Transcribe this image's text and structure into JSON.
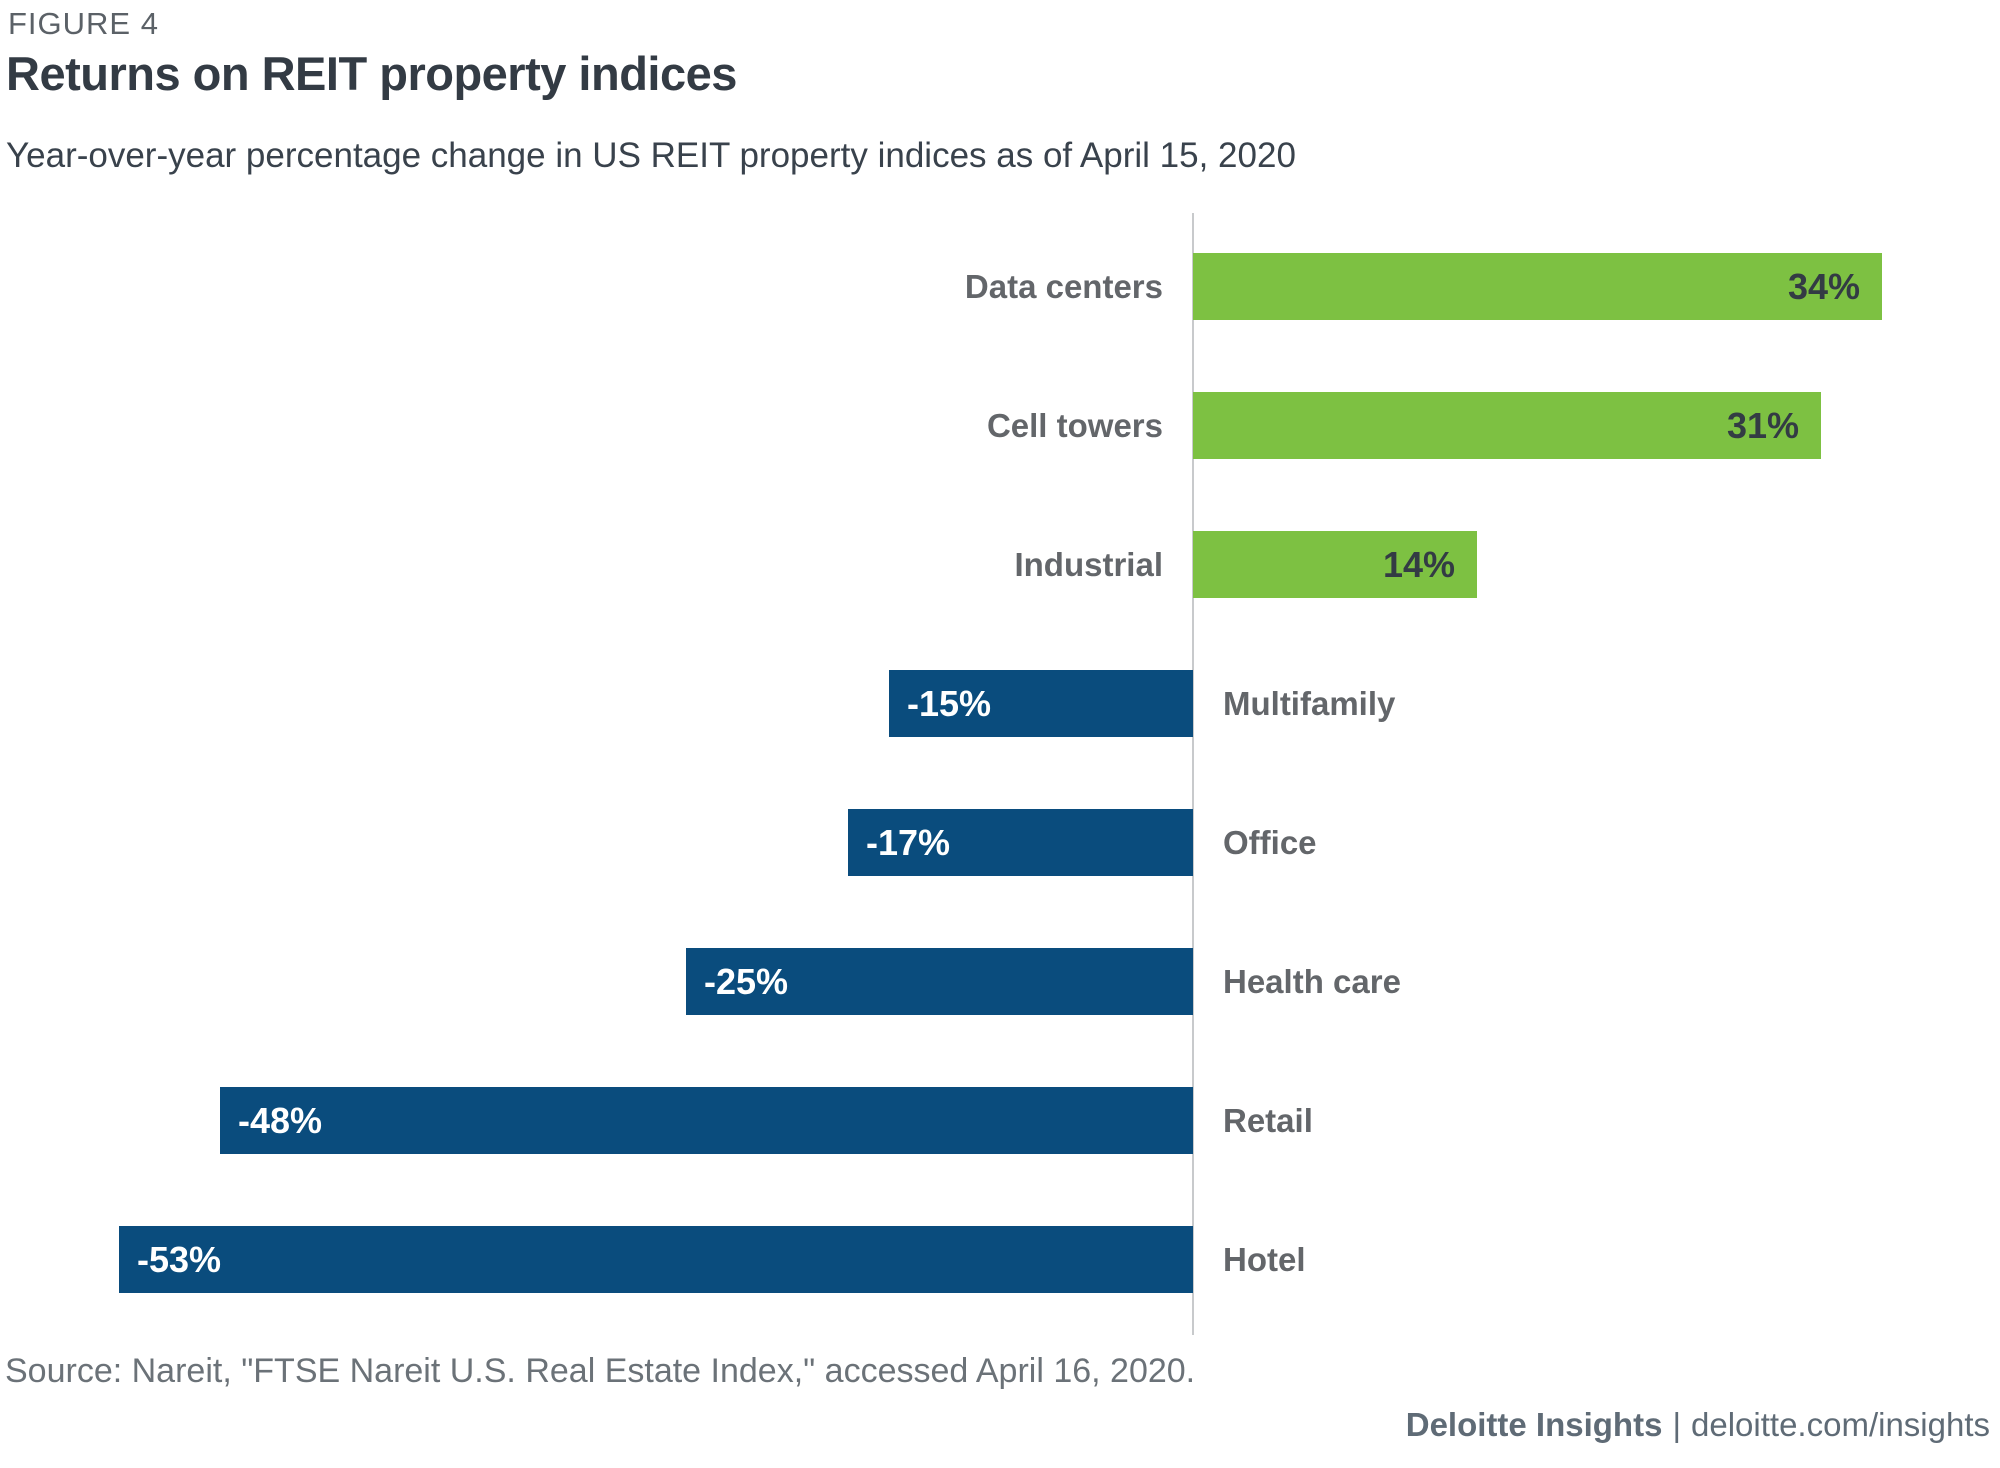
{
  "header": {
    "figure_label": "FIGURE 4",
    "title": "Returns on REIT property indices",
    "subtitle": "Year-over-year percentage change in US REIT property indices as of April 15, 2020"
  },
  "chart_data": {
    "type": "bar",
    "orientation": "horizontal",
    "title": "Returns on REIT property indices",
    "subtitle": "Year-over-year percentage change in US REIT property indices as of April 15, 2020",
    "unit": "percent year-over-year change",
    "categories": [
      "Data centers",
      "Cell towers",
      "Industrial",
      "Multifamily",
      "Office",
      "Health care",
      "Retail",
      "Hotel"
    ],
    "values": [
      34,
      31,
      14,
      -15,
      -17,
      -25,
      -48,
      -53
    ],
    "value_labels": [
      "34%",
      "31%",
      "14%",
      "-15%",
      "-17%",
      "-25%",
      "-48%",
      "-53%"
    ],
    "xlabel": "",
    "ylabel": "",
    "xlim": [
      -59,
      40
    ],
    "grid": false,
    "legend": "none",
    "colors": {
      "positive_bar": "#7DC142",
      "negative_bar": "#0A4C7D",
      "axis_line": "#C8CACC",
      "category_label": "#63666A",
      "value_label_positive": "#333B44",
      "value_label_negative": "#FFFFFF"
    }
  },
  "footer": {
    "source": "Source: Nareit, \"FTSE Nareit U.S. Real Estate Index,\" accessed April 16, 2020.",
    "brand": "Deloitte Insights",
    "separator": "|",
    "url": "deloitte.com/insights"
  }
}
